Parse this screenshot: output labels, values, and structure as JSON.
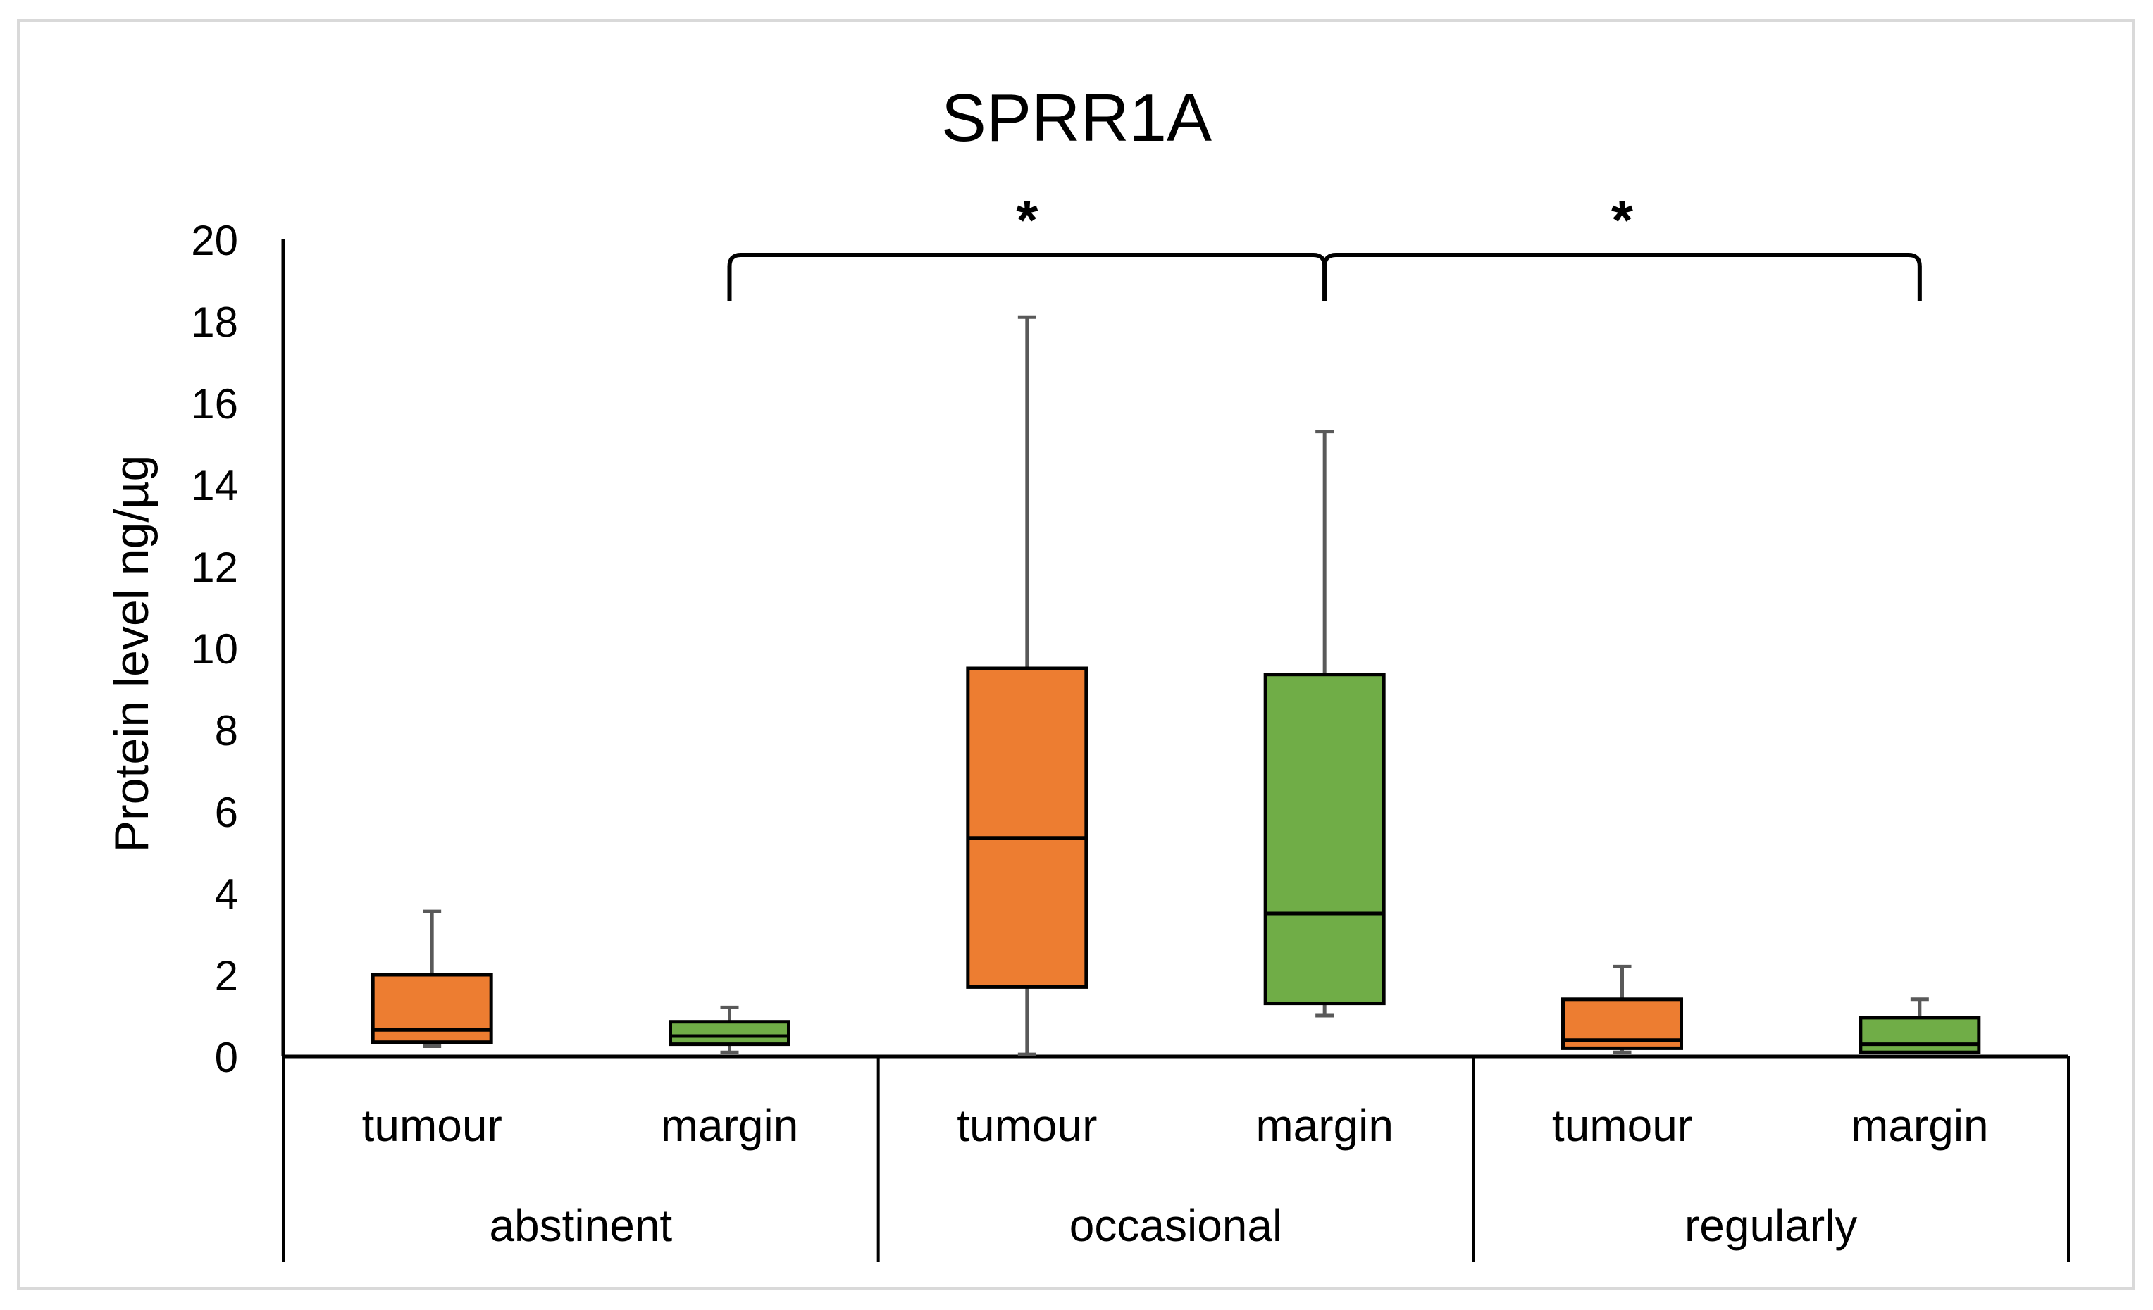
{
  "chart_data": {
    "type": "box",
    "title": "SPRR1A",
    "ylabel": "Protein level ng/µg",
    "xlabel": "",
    "ylim": [
      0,
      20
    ],
    "y_ticks": [
      0,
      2,
      4,
      6,
      8,
      10,
      12,
      14,
      16,
      18,
      20
    ],
    "gridlines": false,
    "groups": [
      {
        "label": "abstinent",
        "boxes": [
          {
            "label": "tumour",
            "color": "#ED7D31",
            "min": 0.25,
            "q1": 0.35,
            "median": 0.65,
            "q3": 2.0,
            "max": 3.55
          },
          {
            "label": "margin",
            "color": "#70AD47",
            "min": 0.1,
            "q1": 0.3,
            "median": 0.5,
            "q3": 0.85,
            "max": 1.2
          }
        ]
      },
      {
        "label": "occasional",
        "boxes": [
          {
            "label": "tumour",
            "color": "#ED7D31",
            "min": 0.05,
            "q1": 1.7,
            "median": 5.35,
            "q3": 9.5,
            "max": 18.1
          },
          {
            "label": "margin",
            "color": "#70AD47",
            "min": 1.0,
            "q1": 1.3,
            "median": 3.5,
            "q3": 9.35,
            "max": 15.3
          }
        ]
      },
      {
        "label": "regularly",
        "boxes": [
          {
            "label": "tumour",
            "color": "#ED7D31",
            "min": 0.1,
            "q1": 0.2,
            "median": 0.4,
            "q3": 1.4,
            "max": 2.2
          },
          {
            "label": "margin",
            "color": "#70AD47",
            "min": 0.1,
            "q1": 0.1,
            "median": 0.3,
            "q3": 0.95,
            "max": 1.4
          }
        ]
      }
    ],
    "annotations": [
      {
        "text": "*",
        "type": "significance-bracket",
        "from": "abstinent margin",
        "to": "occasional margin"
      },
      {
        "text": "*",
        "type": "significance-bracket",
        "from": "occasional margin",
        "to": "regularly margin"
      }
    ]
  }
}
